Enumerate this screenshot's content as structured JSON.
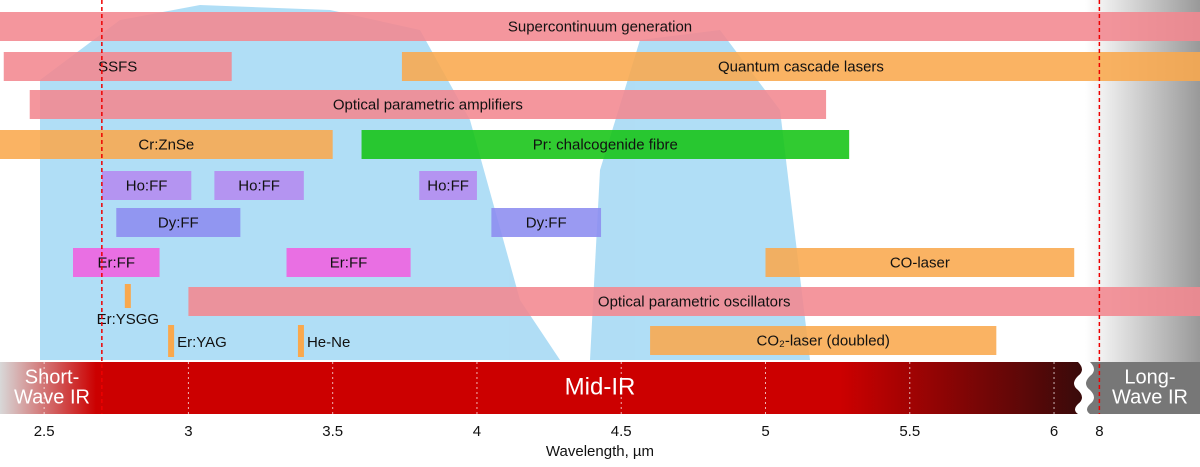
{
  "chart_data": {
    "type": "range-bar",
    "x_label": "Wavelength, µm",
    "xlim": [
      2.347,
      6.09
    ],
    "xticks": [
      2.5,
      3,
      3.5,
      4,
      4.5,
      5,
      5.5,
      6
    ],
    "x2lim": [
      7.95,
      8.35
    ],
    "x2ticks": [
      8
    ],
    "boundaries": [
      2.7,
      8
    ],
    "regions": [
      {
        "lines": [
          "Short-",
          "Wave IR"
        ]
      },
      {
        "lines": [
          "Mid-IR"
        ]
      },
      {
        "lines": [
          "Long-",
          "Wave IR"
        ]
      }
    ],
    "rows": [
      [
        {
          "label": "Supercontinuum generation",
          "start": 2.347,
          "end": 8.35,
          "color": "#f2878f"
        }
      ],
      [
        {
          "label": "SSFS",
          "start": 2.36,
          "end": 3.15,
          "color": "#f2878f"
        },
        {
          "label": "Quantum cascade lasers",
          "start": 3.74,
          "end": 8.35,
          "color": "#f9a84d"
        }
      ],
      [
        {
          "label": "Optical parametric amplifiers",
          "start": 2.45,
          "end": 5.21,
          "color": "#f2878f"
        }
      ],
      [
        {
          "label": "Cr:ZnSe",
          "start": 2.347,
          "end": 3.5,
          "color": "#f9a84d"
        },
        {
          "label": "Pr: chalcogenide fibre",
          "start": 3.6,
          "end": 5.29,
          "color": "#14c414"
        }
      ],
      [
        {
          "label": "Ho:FF",
          "start": 2.7,
          "end": 3.01,
          "color": "#b48af0"
        },
        {
          "label": "Ho:FF",
          "start": 3.09,
          "end": 3.4,
          "color": "#b48af0"
        },
        {
          "label": "Ho:FF",
          "start": 3.8,
          "end": 4.0,
          "color": "#b48af0"
        }
      ],
      [
        {
          "label": "Dy:FF",
          "start": 2.75,
          "end": 3.18,
          "color": "#8c8cf0"
        },
        {
          "label": "Dy:FF",
          "start": 4.05,
          "end": 4.43,
          "color": "#8c8cf0"
        }
      ],
      [
        {
          "label": "Er:FF",
          "start": 2.6,
          "end": 2.9,
          "color": "#f060e0"
        },
        {
          "label": "Er:FF",
          "start": 3.34,
          "end": 3.77,
          "color": "#f060e0"
        },
        {
          "label": "CO-laser",
          "start": 5.0,
          "end": 6.07,
          "color": "#f9a84d"
        }
      ],
      [
        {
          "label": "Optical parametric oscillators",
          "start": 3.0,
          "end": 8.35,
          "color": "#f2878f"
        }
      ],
      [
        {
          "label": "CO₂-laser (doubled)",
          "start": 4.6,
          "end": 5.8,
          "color": "#f9a84d"
        }
      ]
    ],
    "markers": [
      {
        "label": "Er:YSGG",
        "value": 2.79,
        "color": "#f9a84d"
      },
      {
        "label": "Er:YAG",
        "value": 2.94,
        "color": "#f9a84d"
      },
      {
        "label": "He-Ne",
        "value": 3.39,
        "color": "#f9a84d"
      }
    ]
  }
}
